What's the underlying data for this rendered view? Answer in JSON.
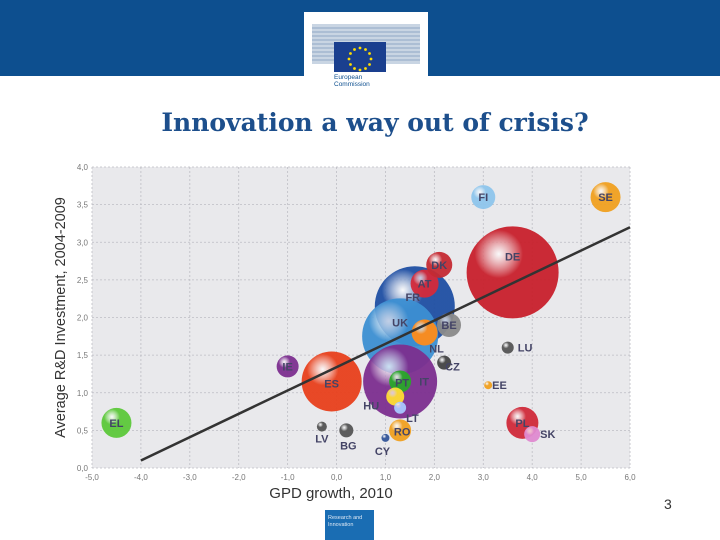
{
  "header": {
    "org_line1": "European",
    "org_line2": "Commission"
  },
  "slide": {
    "title": "Innovation a way out of crisis?",
    "page_number": "3"
  },
  "footer": {
    "line1": "Research and",
    "line2": "Innovation"
  },
  "colors": {
    "top_band": "#0d4f8f",
    "title": "#1d4f8c",
    "plot_bg": "#e9e9ec",
    "footer_box": "#1a6db3"
  },
  "chart_data": {
    "type": "scatter",
    "title": "",
    "xlabel": "GPD growth, 2010",
    "ylabel": "Average R&D Investment, 2004-2009",
    "xlim": [
      -5.0,
      6.0
    ],
    "ylim": [
      0.0,
      4.0
    ],
    "x_ticks": [
      "-5,0",
      "-4,0",
      "-3,0",
      "-2,0",
      "-1,0",
      "0,0",
      "1,0",
      "2,0",
      "3,0",
      "4,0",
      "5,0",
      "6,0"
    ],
    "y_ticks": [
      "0,0",
      "0,5",
      "1,0",
      "1,5",
      "2,0",
      "2,5",
      "3,0",
      "3,5",
      "4,0"
    ],
    "grid": true,
    "trend_line": {
      "x": [
        -4.0,
        6.0
      ],
      "y": [
        0.1,
        3.2
      ]
    },
    "bubbles": [
      {
        "label": "DE",
        "x": 3.6,
        "y": 2.6,
        "size": 46,
        "color": "#c8202c"
      },
      {
        "label": "FR",
        "x": 1.6,
        "y": 2.15,
        "size": 40,
        "color": "#1f4fa3"
      },
      {
        "label": "UK",
        "x": 1.3,
        "y": 1.75,
        "size": 38,
        "color": "#3c8fd2"
      },
      {
        "label": "IT",
        "x": 1.3,
        "y": 1.15,
        "size": 37,
        "color": "#7c2f8f"
      },
      {
        "label": "ES",
        "x": -0.1,
        "y": 1.15,
        "size": 30,
        "color": "#e8401c"
      },
      {
        "label": "AT",
        "x": 1.8,
        "y": 2.45,
        "size": 14,
        "color": "#d42a3a"
      },
      {
        "label": "DK",
        "x": 2.1,
        "y": 2.7,
        "size": 13,
        "color": "#c52a32"
      },
      {
        "label": "BE",
        "x": 2.3,
        "y": 1.9,
        "size": 12,
        "color": "#8a8a8a"
      },
      {
        "label": "NL",
        "x": 1.8,
        "y": 1.8,
        "size": 13,
        "color": "#ff8c1a"
      },
      {
        "label": "CZ",
        "x": 2.2,
        "y": 1.4,
        "size": 7,
        "color": "#444444"
      },
      {
        "label": "PT",
        "x": 1.3,
        "y": 1.15,
        "size": 11,
        "color": "#2aa62a"
      },
      {
        "label": "HU",
        "x": 1.2,
        "y": 0.95,
        "size": 9,
        "color": "#ffdd33"
      },
      {
        "label": "LT",
        "x": 1.3,
        "y": 0.8,
        "size": 6,
        "color": "#a8c8ff"
      },
      {
        "label": "RO",
        "x": 1.3,
        "y": 0.5,
        "size": 11,
        "color": "#f0a020"
      },
      {
        "label": "CY",
        "x": 1.0,
        "y": 0.4,
        "size": 4,
        "color": "#335599"
      },
      {
        "label": "FI",
        "x": 3.0,
        "y": 3.6,
        "size": 12,
        "color": "#8ec5ec"
      },
      {
        "label": "SE",
        "x": 5.5,
        "y": 3.6,
        "size": 15,
        "color": "#f0a020"
      },
      {
        "label": "LU",
        "x": 3.5,
        "y": 1.6,
        "size": 6,
        "color": "#555555"
      },
      {
        "label": "EE",
        "x": 3.1,
        "y": 1.1,
        "size": 4,
        "color": "#f0a020"
      },
      {
        "label": "PL",
        "x": 3.8,
        "y": 0.6,
        "size": 16,
        "color": "#d02a3a"
      },
      {
        "label": "SK",
        "x": 4.0,
        "y": 0.45,
        "size": 8,
        "color": "#e08ad0"
      },
      {
        "label": "IE",
        "x": -1.0,
        "y": 1.35,
        "size": 11,
        "color": "#7c2f8f"
      },
      {
        "label": "EL",
        "x": -4.5,
        "y": 0.6,
        "size": 15,
        "color": "#5cc83a"
      },
      {
        "label": "LV",
        "x": -0.3,
        "y": 0.55,
        "size": 5,
        "color": "#555555"
      },
      {
        "label": "BG",
        "x": 0.2,
        "y": 0.5,
        "size": 7,
        "color": "#555555"
      }
    ]
  }
}
